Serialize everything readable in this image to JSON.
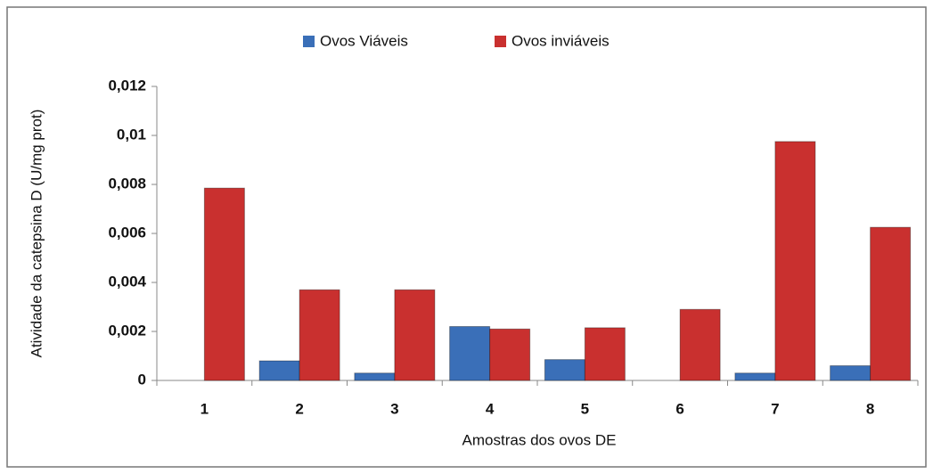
{
  "chart_data": {
    "type": "bar",
    "x_label": "Amostras dos ovos DE",
    "y_label": "Atividade da catepsina D (U/mg prot)",
    "categories": [
      "1",
      "2",
      "3",
      "4",
      "5",
      "6",
      "7",
      "8"
    ],
    "series": [
      {
        "name": "Ovos Viáveis",
        "color": "#3a6fb8",
        "values": [
          0,
          0.0008,
          0.0003,
          0.0022,
          0.00085,
          0,
          0.0003,
          0.0006
        ]
      },
      {
        "name": "Ovos inviáveis",
        "color": "#c9302f",
        "values": [
          0.00785,
          0.0037,
          0.0037,
          0.0021,
          0.00215,
          0.0029,
          0.00975,
          0.00625
        ]
      }
    ],
    "ylim": [
      0,
      0.012
    ],
    "yticks": [
      0,
      {
        "value": 0.002,
        "label": "0,002"
      },
      {
        "value": 0.004,
        "label": "0,004"
      },
      {
        "value": 0.006,
        "label": "0,006"
      },
      {
        "value": 0.008,
        "label": "0,008"
      },
      {
        "value": 0.01,
        "label": "0,01"
      },
      {
        "value": 0.012,
        "label": "0,012"
      }
    ],
    "legend": "top",
    "grid": false
  }
}
